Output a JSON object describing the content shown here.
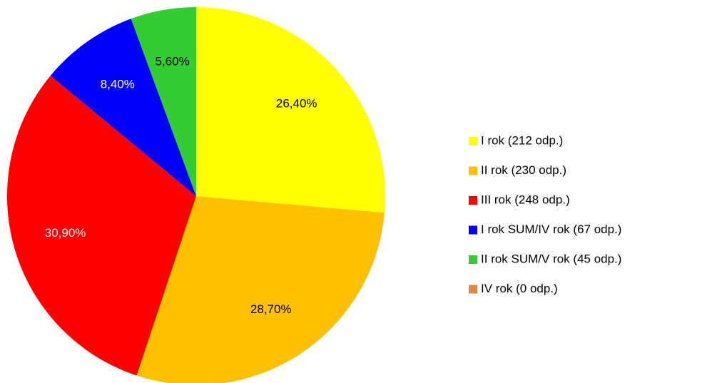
{
  "chart_data": {
    "type": "pie",
    "categories": [
      "I rok (212 odp.)",
      "II rok (230 odp.)",
      "III rok (248 odp.)",
      "I rok SUM/IV rok (67 odp.)",
      "II rok SUM/V rok (45 odp.)",
      "IV rok (0 odp.)"
    ],
    "values": [
      26.4,
      28.7,
      30.9,
      8.4,
      5.6,
      0
    ],
    "value_labels": [
      "26,40%",
      "28,70%",
      "30,90%",
      "8,40%",
      "5,60%",
      null
    ],
    "colors": [
      "#ffff00",
      "#ffc000",
      "#ff0000",
      "#0000ff",
      "#33cc33",
      "#dd8844"
    ],
    "legend": "right"
  }
}
